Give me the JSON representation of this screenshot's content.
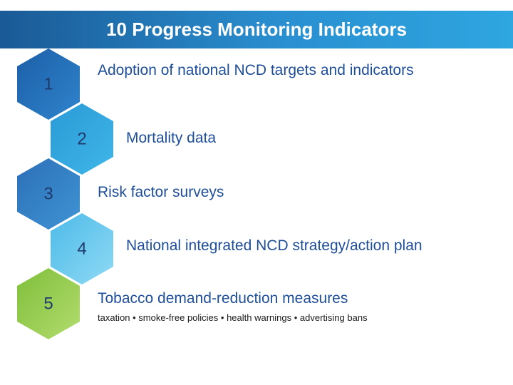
{
  "header": {
    "title": "10 Progress Monitoring Indicators"
  },
  "items": [
    {
      "number": "1",
      "label": "Adoption of national NCD targets and indicators"
    },
    {
      "number": "2",
      "label": "Mortality data"
    },
    {
      "number": "3",
      "label": "Risk factor surveys"
    },
    {
      "number": "4",
      "label": "National integrated NCD strategy/action plan"
    },
    {
      "number": "5",
      "label": "Tobacco demand-reduction measures",
      "detail": "taxation • smoke-free policies • health warnings • advertising bans"
    }
  ]
}
